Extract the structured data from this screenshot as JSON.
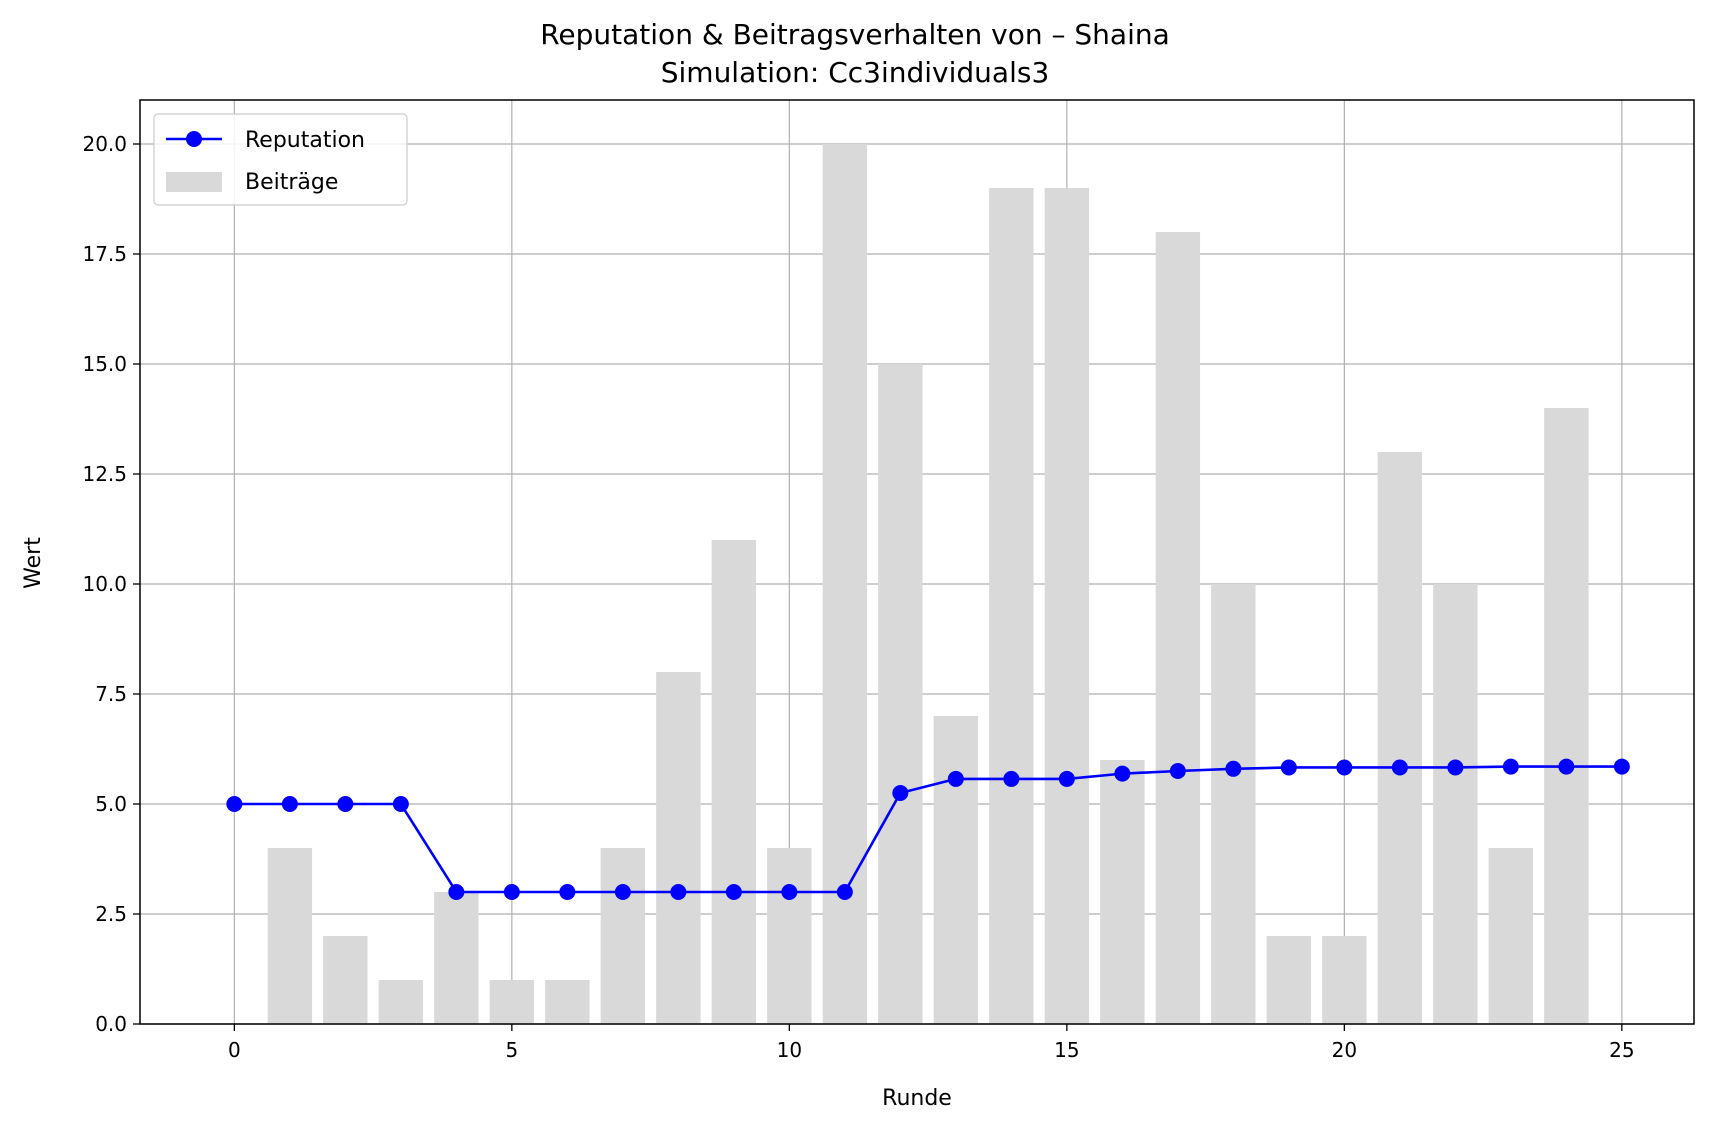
{
  "chart_data": {
    "type": "bar+line",
    "title": "Reputation & Beitragsverhalten von – Shaina",
    "subtitle": "Simulation: Cc3individuals3",
    "xlabel": "Runde",
    "ylabel": "Wert",
    "xlim": [
      -1.7,
      26.3
    ],
    "ylim": [
      0,
      21
    ],
    "xticks": [
      0,
      5,
      10,
      15,
      20,
      25
    ],
    "yticks": [
      0.0,
      2.5,
      5.0,
      7.5,
      10.0,
      12.5,
      15.0,
      17.5,
      20.0
    ],
    "xtick_labels": [
      "0",
      "5",
      "10",
      "15",
      "20",
      "25"
    ],
    "ytick_labels": [
      "0.0",
      "2.5",
      "5.0",
      "7.5",
      "10.0",
      "12.5",
      "15.0",
      "17.5",
      "20.0"
    ],
    "grid": true,
    "legend_position": "upper-left",
    "series": [
      {
        "name": "Reputation",
        "kind": "line",
        "color": "#0000ff",
        "x": [
          0,
          1,
          2,
          3,
          4,
          5,
          6,
          7,
          8,
          9,
          10,
          11,
          12,
          13,
          14,
          15,
          16,
          17,
          18,
          19,
          20,
          21,
          22,
          23,
          24,
          25
        ],
        "values": [
          5.0,
          5.0,
          5.0,
          5.0,
          3.0,
          3.0,
          3.0,
          3.0,
          3.0,
          3.0,
          3.0,
          3.0,
          5.25,
          5.57,
          5.57,
          5.57,
          5.69,
          5.75,
          5.8,
          5.83,
          5.83,
          5.83,
          5.83,
          5.85,
          5.85,
          5.85
        ]
      },
      {
        "name": "Beiträge",
        "kind": "bar",
        "color": "#d9d9d9",
        "x": [
          1,
          2,
          3,
          4,
          5,
          6,
          7,
          8,
          9,
          10,
          11,
          12,
          13,
          14,
          15,
          16,
          17,
          18,
          19,
          20,
          21,
          22,
          23,
          24
        ],
        "values": [
          4,
          2,
          1,
          3,
          1,
          1,
          4,
          8,
          11,
          4,
          20,
          15,
          7,
          19,
          19,
          6,
          18,
          10,
          2,
          2,
          13,
          10,
          4,
          14
        ]
      }
    ]
  }
}
